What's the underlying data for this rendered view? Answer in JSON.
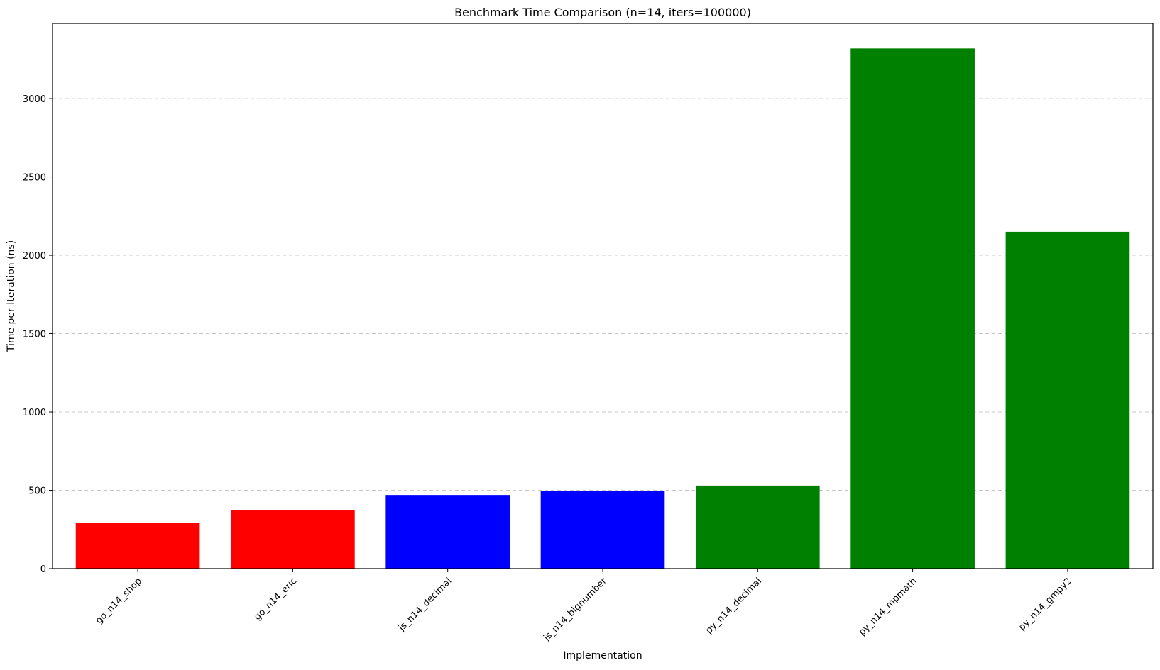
{
  "chart_data": {
    "type": "bar",
    "title": "Benchmark Time Comparison (n=14, iters=100000)",
    "xlabel": "Implementation",
    "ylabel": "Time per Iteration (ns)",
    "categories": [
      "go_n14_shop",
      "go_n14_eric",
      "js_n14_decimal",
      "js_n14_bignumber",
      "py_n14_decimal",
      "py_n14_mpmath",
      "py_n14_gmpy2"
    ],
    "values": [
      290,
      375,
      470,
      495,
      530,
      3320,
      2150
    ],
    "colors": [
      "#ff0000",
      "#ff0000",
      "#0000ff",
      "#0000ff",
      "#008000",
      "#008000",
      "#008000"
    ],
    "ylim": [
      0,
      3480
    ],
    "yticks": [
      0,
      500,
      1000,
      1500,
      2000,
      2500,
      3000
    ],
    "grid": "y-dashed",
    "legend": "none"
  }
}
